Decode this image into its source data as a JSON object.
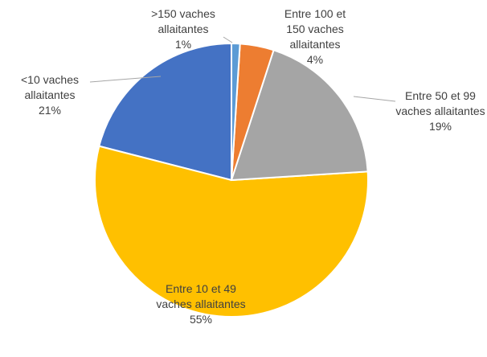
{
  "chart_data": {
    "type": "pie",
    "categories": [
      ">150 vaches allaitantes",
      "Entre 100 et 150 vaches allaitantes",
      "Entre 50 et 99 vaches allaitantes",
      "Entre 10 et 49 vaches allaitantes",
      "<10 vaches allaitantes"
    ],
    "values": [
      1,
      4,
      19,
      55,
      21
    ],
    "value_labels": [
      "1%",
      "4%",
      "19%",
      "55%",
      "21%"
    ],
    "colors": [
      "#5b9bd5",
      "#ed7d31",
      "#a5a5a5",
      "#ffc000",
      "#4472c4"
    ]
  }
}
